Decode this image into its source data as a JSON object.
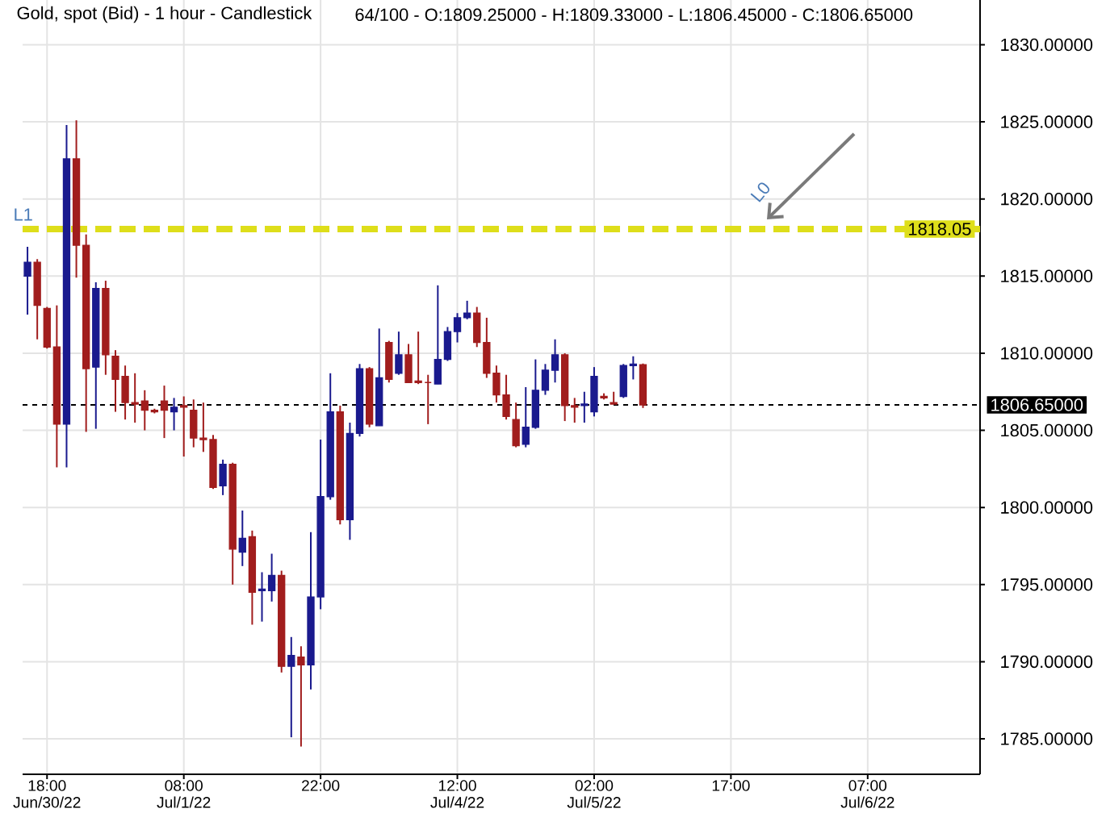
{
  "chart_data": {
    "type": "candlestick",
    "title": "Gold, spot (Bid) - 1 hour - Candlestick",
    "subtitle": "64/100 - O:1809.25000 - H:1809.33000 - L:1806.45000 - C:1806.65000",
    "categories": [
      null,
      null,
      "18:00 Jun/30/22",
      null,
      null,
      null,
      null,
      null,
      null,
      null,
      null,
      null,
      null,
      null,
      null,
      null,
      "08:00 Jul/1/22",
      null,
      null,
      null,
      null,
      null,
      null,
      null,
      null,
      null,
      null,
      null,
      null,
      null,
      "22:00",
      null,
      null,
      null,
      null,
      null,
      null,
      null,
      null,
      null,
      null,
      null,
      null,
      null,
      "12:00 Jul/4/22",
      null,
      null,
      null,
      null,
      null,
      null,
      null,
      null,
      null,
      null,
      null,
      null,
      null,
      "02:00 Jul/5/22",
      null,
      null,
      null,
      null,
      null,
      null,
      null,
      null,
      null,
      null,
      null,
      null,
      null,
      "17:00",
      null,
      null,
      null,
      null,
      null,
      null,
      null,
      null,
      null,
      null,
      null,
      null,
      null,
      "07:00 Jul/6/22",
      null,
      null,
      null,
      null,
      null,
      null,
      null,
      null,
      null,
      null,
      null
    ],
    "ohlc": [
      [
        1815.0,
        1816.9,
        1812.5,
        1815.9
      ],
      [
        1815.9,
        1816.1,
        1810.9,
        1813.1
      ],
      [
        1812.9,
        1813.0,
        1810.3,
        1810.4
      ],
      [
        1810.4,
        1813.1,
        1802.6,
        1805.4
      ],
      [
        1805.4,
        1824.8,
        1802.6,
        1822.6
      ],
      [
        1822.6,
        1825.1,
        1814.9,
        1817.0
      ],
      [
        1817.0,
        1817.7,
        1804.9,
        1809.0
      ],
      [
        1809.1,
        1814.6,
        1805.1,
        1814.2
      ],
      [
        1814.2,
        1814.7,
        1808.6,
        1809.9
      ],
      [
        1809.8,
        1810.2,
        1806.2,
        1808.3
      ],
      [
        1808.5,
        1809.2,
        1805.7,
        1806.8
      ],
      [
        1806.8,
        1808.7,
        1805.5,
        1806.7
      ],
      [
        1806.9,
        1807.6,
        1805.0,
        1806.3
      ],
      [
        1806.3,
        1806.4,
        1806.1,
        1806.2
      ],
      [
        1806.9,
        1807.9,
        1804.5,
        1806.3
      ],
      [
        1806.2,
        1807.1,
        1805.0,
        1806.5
      ],
      [
        1806.6,
        1807.2,
        1803.3,
        1806.5
      ],
      [
        1806.3,
        1807.0,
        1803.9,
        1804.5
      ],
      [
        1804.5,
        1806.8,
        1803.6,
        1804.4
      ],
      [
        1804.4,
        1804.7,
        1801.2,
        1801.3
      ],
      [
        1801.4,
        1803.1,
        1800.8,
        1802.8
      ],
      [
        1802.8,
        1802.9,
        1795.0,
        1797.3
      ],
      [
        1797.1,
        1799.8,
        1796.2,
        1798.0
      ],
      [
        1798.1,
        1798.5,
        1792.4,
        1794.5
      ],
      [
        1794.6,
        1795.8,
        1792.6,
        1794.7
      ],
      [
        1794.6,
        1797.0,
        1793.9,
        1795.6
      ],
      [
        1795.6,
        1795.9,
        1789.3,
        1789.7
      ],
      [
        1789.7,
        1791.6,
        1785.1,
        1790.4
      ],
      [
        1790.3,
        1791.0,
        1784.5,
        1789.8
      ],
      [
        1789.8,
        1798.4,
        1788.2,
        1794.2
      ],
      [
        1794.2,
        1804.4,
        1793.4,
        1800.7
      ],
      [
        1800.7,
        1808.7,
        1800.5,
        1806.2
      ],
      [
        1806.2,
        1806.6,
        1798.9,
        1799.2
      ],
      [
        1799.2,
        1805.5,
        1797.9,
        1804.8
      ],
      [
        1804.8,
        1809.3,
        1804.6,
        1809.0
      ],
      [
        1809.0,
        1809.1,
        1805.2,
        1805.4
      ],
      [
        1805.3,
        1811.6,
        1805.3,
        1808.4
      ],
      [
        1810.7,
        1810.8,
        1808.1,
        1808.3
      ],
      [
        1808.7,
        1811.4,
        1808.6,
        1809.9
      ],
      [
        1809.9,
        1810.6,
        1808.1,
        1808.1
      ],
      [
        1808.2,
        1811.4,
        1808.0,
        1808.1
      ],
      [
        1808.1,
        1808.6,
        1805.4,
        1808.1
      ],
      [
        1808.0,
        1814.4,
        1808.0,
        1809.6
      ],
      [
        1809.6,
        1811.7,
        1809.5,
        1811.4
      ],
      [
        1811.4,
        1812.6,
        1810.7,
        1812.3
      ],
      [
        1812.3,
        1813.4,
        1812.2,
        1812.6
      ],
      [
        1812.6,
        1813.0,
        1810.4,
        1810.7
      ],
      [
        1810.7,
        1812.3,
        1808.4,
        1808.7
      ],
      [
        1808.7,
        1809.2,
        1806.8,
        1807.3
      ],
      [
        1807.3,
        1808.6,
        1805.7,
        1805.9
      ],
      [
        1805.7,
        1806.8,
        1803.9,
        1804.0
      ],
      [
        1804.1,
        1807.8,
        1803.9,
        1805.2
      ],
      [
        1805.2,
        1809.6,
        1805.1,
        1807.6
      ],
      [
        1807.6,
        1809.3,
        1807.3,
        1808.9
      ],
      [
        1808.9,
        1810.9,
        1808.1,
        1809.9
      ],
      [
        1809.9,
        1810.0,
        1805.6,
        1806.6
      ],
      [
        1806.6,
        1807.1,
        1805.5,
        1806.5
      ],
      [
        1806.6,
        1807.5,
        1805.5,
        1806.7
      ],
      [
        1806.2,
        1809.1,
        1805.9,
        1808.5
      ],
      [
        1807.2,
        1807.4,
        1807.0,
        1807.1
      ],
      [
        1806.8,
        1807.5,
        1806.7,
        1806.7
      ],
      [
        1807.2,
        1809.3,
        1807.1,
        1809.2
      ],
      [
        1809.2,
        1809.8,
        1808.3,
        1809.3
      ],
      [
        1809.25,
        1809.33,
        1806.45,
        1806.65
      ],
      null,
      null,
      null,
      null,
      null,
      null,
      null,
      null,
      null,
      null,
      null,
      null,
      null,
      null,
      null,
      null,
      null,
      null,
      null,
      null,
      null,
      null,
      null,
      null,
      null,
      null,
      null,
      null,
      null,
      null,
      null,
      null,
      null,
      null
    ],
    "colors": [
      "#1a1a8e",
      "#a11d1d",
      "#a11d1d",
      "#a11d1d",
      "#1a1a8e",
      "#a11d1d",
      "#a11d1d",
      "#1a1a8e",
      "#a11d1d",
      "#a11d1d",
      "#a11d1d",
      "#a11d1d",
      "#a11d1d",
      "#a11d1d",
      "#a11d1d",
      "#1a1a8e",
      "#a11d1d",
      "#a11d1d",
      "#a11d1d",
      "#a11d1d",
      "#1a1a8e",
      "#a11d1d",
      "#1a1a8e",
      "#a11d1d",
      "#1a1a8e",
      "#1a1a8e",
      "#a11d1d",
      "#1a1a8e",
      "#a11d1d",
      "#1a1a8e",
      "#1a1a8e",
      "#1a1a8e",
      "#a11d1d",
      "#1a1a8e",
      "#1a1a8e",
      "#a11d1d",
      "#1a1a8e",
      "#a11d1d",
      "#1a1a8e",
      "#a11d1d",
      "#a11d1d",
      "#a11d1d",
      "#1a1a8e",
      "#1a1a8e",
      "#1a1a8e",
      "#1a1a8e",
      "#a11d1d",
      "#a11d1d",
      "#a11d1d",
      "#a11d1d",
      "#a11d1d",
      "#1a1a8e",
      "#1a1a8e",
      "#1a1a8e",
      "#1a1a8e",
      "#a11d1d",
      "#a11d1d",
      "#1a1a8e",
      "#1a1a8e",
      "#a11d1d",
      "#a11d1d",
      "#1a1a8e",
      "#1a1a8e",
      "#a11d1d",
      null,
      null,
      null,
      null,
      null,
      null,
      null,
      null,
      null,
      null,
      null,
      null,
      null,
      null,
      null,
      null,
      null,
      null,
      null,
      null,
      null,
      null,
      null,
      null,
      null,
      null,
      null,
      null,
      null,
      null,
      null,
      null,
      null,
      null
    ],
    "ylim": [
      1782.7,
      1832.9
    ],
    "yticks": [
      {
        "value": 1785,
        "label": "1785.00000"
      },
      {
        "value": 1790,
        "label": "1790.00000"
      },
      {
        "value": 1795,
        "label": "1795.00000"
      },
      {
        "value": 1800,
        "label": "1800.00000"
      },
      {
        "value": 1805,
        "label": "1805.00000"
      },
      {
        "value": 1810,
        "label": "1810.00000"
      },
      {
        "value": 1815,
        "label": "1815.00000"
      },
      {
        "value": 1820,
        "label": "1820.00000"
      },
      {
        "value": 1825,
        "label": "1825.00000"
      },
      {
        "value": 1830,
        "label": "1830.00000"
      }
    ],
    "grid": true,
    "ref_lines": [
      {
        "axis": "y",
        "value": 1818.05,
        "label": "1818.05",
        "color": "#dede1a",
        "line_style": "dashed"
      },
      {
        "axis": "y",
        "value": 1806.65,
        "label": "1806.65000",
        "color": "#000000",
        "line_style": "dashed"
      }
    ],
    "annotations": [
      {
        "text": "L1",
        "y": 1818.05
      },
      "L0"
    ]
  }
}
